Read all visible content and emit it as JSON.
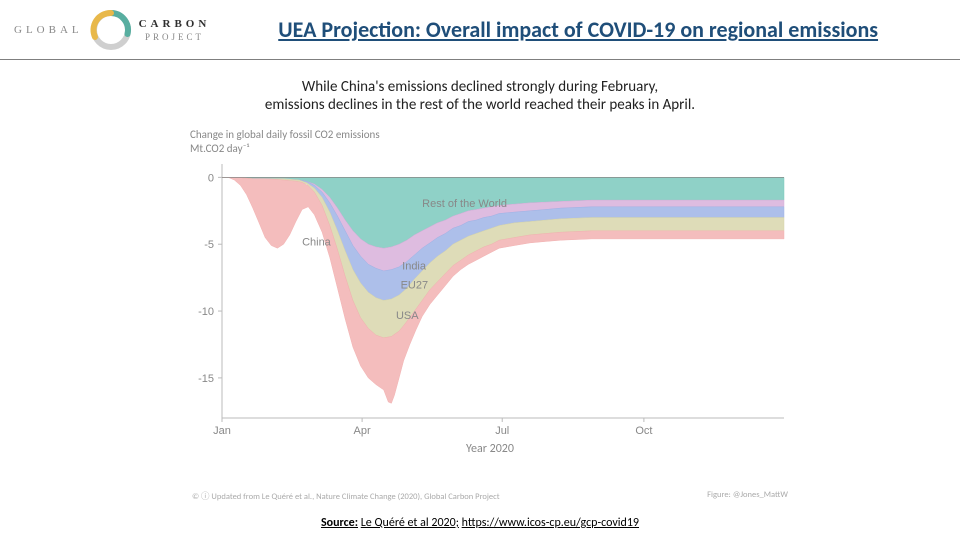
{
  "header": {
    "logo": {
      "word1": "GLOBAL",
      "word2": "CARBON",
      "word3": "PROJECT"
    },
    "title": "UEA Projection: Overall impact of COVID-19 on regional emissions"
  },
  "subtitle_line1": "While China's emissions declined strongly during February,",
  "subtitle_line2": "emissions declines in the rest of the world reached their peaks in April.",
  "chart": {
    "type": "stacked-area",
    "title_line1": "Change in global daily fossil CO2 emissions",
    "title_line2": "Mt.CO2 day⁻¹",
    "x_label": "Year 2020",
    "x_ticks": [
      "Jan",
      "Apr",
      "Jul",
      "Oct"
    ],
    "x_tick_positions": [
      0,
      91,
      182,
      274
    ],
    "x_domain": [
      0,
      365
    ],
    "y_ticks": [
      0,
      -5,
      -10,
      -15
    ],
    "y_domain": [
      -18,
      1
    ],
    "background_color": "#ffffff",
    "grid_color": "#e0e0e0",
    "axis_color": "#bbbbbb",
    "series": [
      {
        "name": "Rest of the World",
        "color": "#7bc9bd",
        "label_color": "#555",
        "label_xy": [
          130,
          -2.2
        ],
        "data": [
          [
            0,
            0
          ],
          [
            10,
            0
          ],
          [
            20,
            -0.1
          ],
          [
            30,
            -0.1
          ],
          [
            40,
            -0.1
          ],
          [
            50,
            -0.2
          ],
          [
            55,
            -0.3
          ],
          [
            60,
            -0.5
          ],
          [
            65,
            -0.9
          ],
          [
            70,
            -1.5
          ],
          [
            75,
            -2.3
          ],
          [
            80,
            -3.2
          ],
          [
            85,
            -4.0
          ],
          [
            90,
            -4.6
          ],
          [
            95,
            -5.0
          ],
          [
            100,
            -5.2
          ],
          [
            105,
            -5.3
          ],
          [
            110,
            -5.2
          ],
          [
            115,
            -5.0
          ],
          [
            120,
            -4.7
          ],
          [
            125,
            -4.3
          ],
          [
            130,
            -4.0
          ],
          [
            135,
            -3.7
          ],
          [
            140,
            -3.4
          ],
          [
            145,
            -3.2
          ],
          [
            150,
            -2.9
          ],
          [
            155,
            -2.7
          ],
          [
            160,
            -2.5
          ],
          [
            165,
            -2.4
          ],
          [
            170,
            -2.3
          ],
          [
            175,
            -2.2
          ],
          [
            180,
            -2.1
          ],
          [
            190,
            -2.0
          ],
          [
            200,
            -1.9
          ],
          [
            210,
            -1.85
          ],
          [
            220,
            -1.8
          ],
          [
            240,
            -1.7
          ],
          [
            260,
            -1.7
          ],
          [
            280,
            -1.7
          ],
          [
            300,
            -1.7
          ],
          [
            320,
            -1.7
          ],
          [
            340,
            -1.7
          ],
          [
            365,
            -1.7
          ]
        ]
      },
      {
        "name": "India",
        "color": "#d8b0da",
        "label_color": "#b084b3",
        "label_xy": [
          117,
          -6.9
        ],
        "data": [
          [
            0,
            0
          ],
          [
            10,
            0
          ],
          [
            20,
            -0.1
          ],
          [
            30,
            -0.1
          ],
          [
            40,
            -0.1
          ],
          [
            50,
            -0.2
          ],
          [
            55,
            -0.3
          ],
          [
            60,
            -0.6
          ],
          [
            65,
            -1.1
          ],
          [
            70,
            -1.9
          ],
          [
            75,
            -2.9
          ],
          [
            80,
            -4.0
          ],
          [
            85,
            -5.1
          ],
          [
            90,
            -5.9
          ],
          [
            95,
            -6.5
          ],
          [
            100,
            -6.8
          ],
          [
            105,
            -7.0
          ],
          [
            110,
            -6.9
          ],
          [
            115,
            -6.7
          ],
          [
            120,
            -6.3
          ],
          [
            125,
            -5.8
          ],
          [
            130,
            -5.3
          ],
          [
            135,
            -4.9
          ],
          [
            140,
            -4.5
          ],
          [
            145,
            -4.2
          ],
          [
            150,
            -3.8
          ],
          [
            155,
            -3.6
          ],
          [
            160,
            -3.3
          ],
          [
            165,
            -3.2
          ],
          [
            170,
            -3.0
          ],
          [
            175,
            -2.9
          ],
          [
            180,
            -2.7
          ],
          [
            190,
            -2.6
          ],
          [
            200,
            -2.5
          ],
          [
            210,
            -2.4
          ],
          [
            220,
            -2.3
          ],
          [
            240,
            -2.2
          ],
          [
            260,
            -2.2
          ],
          [
            280,
            -2.2
          ],
          [
            300,
            -2.2
          ],
          [
            320,
            -2.2
          ],
          [
            340,
            -2.2
          ],
          [
            365,
            -2.2
          ]
        ]
      },
      {
        "name": "EU27",
        "color": "#9fb4e6",
        "label_color": "#6f87c9",
        "label_xy": [
          116,
          -8.3
        ],
        "data": [
          [
            0,
            0
          ],
          [
            10,
            0
          ],
          [
            20,
            -0.1
          ],
          [
            30,
            -0.1
          ],
          [
            40,
            -0.1
          ],
          [
            50,
            -0.2
          ],
          [
            55,
            -0.4
          ],
          [
            60,
            -0.8
          ],
          [
            65,
            -1.5
          ],
          [
            70,
            -2.6
          ],
          [
            75,
            -4.0
          ],
          [
            80,
            -5.5
          ],
          [
            85,
            -6.9
          ],
          [
            90,
            -7.9
          ],
          [
            95,
            -8.6
          ],
          [
            100,
            -9.0
          ],
          [
            105,
            -9.2
          ],
          [
            110,
            -9.1
          ],
          [
            115,
            -8.8
          ],
          [
            120,
            -8.3
          ],
          [
            125,
            -7.6
          ],
          [
            130,
            -7.0
          ],
          [
            135,
            -6.4
          ],
          [
            140,
            -5.9
          ],
          [
            145,
            -5.5
          ],
          [
            150,
            -5.0
          ],
          [
            155,
            -4.7
          ],
          [
            160,
            -4.4
          ],
          [
            165,
            -4.2
          ],
          [
            170,
            -4.0
          ],
          [
            175,
            -3.8
          ],
          [
            180,
            -3.6
          ],
          [
            190,
            -3.4
          ],
          [
            200,
            -3.3
          ],
          [
            210,
            -3.2
          ],
          [
            220,
            -3.1
          ],
          [
            240,
            -3.0
          ],
          [
            260,
            -3.0
          ],
          [
            280,
            -3.0
          ],
          [
            300,
            -3.0
          ],
          [
            320,
            -3.0
          ],
          [
            340,
            -3.0
          ],
          [
            365,
            -3.0
          ]
        ]
      },
      {
        "name": "USA",
        "color": "#d8d6ab",
        "label_color": "#a09e6f",
        "label_xy": [
          113,
          -10.6
        ],
        "data": [
          [
            0,
            0
          ],
          [
            10,
            0
          ],
          [
            20,
            -0.1
          ],
          [
            30,
            -0.1
          ],
          [
            40,
            -0.2
          ],
          [
            50,
            -0.3
          ],
          [
            55,
            -0.5
          ],
          [
            60,
            -1.1
          ],
          [
            65,
            -2.1
          ],
          [
            70,
            -3.6
          ],
          [
            75,
            -5.4
          ],
          [
            80,
            -7.4
          ],
          [
            85,
            -9.2
          ],
          [
            90,
            -10.5
          ],
          [
            95,
            -11.3
          ],
          [
            100,
            -11.8
          ],
          [
            105,
            -12.0
          ],
          [
            110,
            -11.9
          ],
          [
            115,
            -11.5
          ],
          [
            120,
            -10.8
          ],
          [
            125,
            -10.0
          ],
          [
            130,
            -9.2
          ],
          [
            135,
            -8.4
          ],
          [
            140,
            -7.8
          ],
          [
            145,
            -7.2
          ],
          [
            150,
            -6.6
          ],
          [
            155,
            -6.2
          ],
          [
            160,
            -5.8
          ],
          [
            165,
            -5.5
          ],
          [
            170,
            -5.2
          ],
          [
            175,
            -5.0
          ],
          [
            180,
            -4.7
          ],
          [
            190,
            -4.5
          ],
          [
            200,
            -4.3
          ],
          [
            210,
            -4.2
          ],
          [
            220,
            -4.1
          ],
          [
            240,
            -4.0
          ],
          [
            260,
            -4.0
          ],
          [
            280,
            -4.0
          ],
          [
            300,
            -4.0
          ],
          [
            320,
            -4.0
          ],
          [
            340,
            -4.0
          ],
          [
            365,
            -4.0
          ]
        ]
      },
      {
        "name": "China",
        "color": "#f2b2b2",
        "label_color": "#d46a6a",
        "label_xy": [
          52,
          -5.1
        ],
        "data": [
          [
            0,
            0
          ],
          [
            4,
            0
          ],
          [
            8,
            -0.2
          ],
          [
            12,
            -0.6
          ],
          [
            16,
            -1.3
          ],
          [
            20,
            -2.3
          ],
          [
            24,
            -3.4
          ],
          [
            28,
            -4.5
          ],
          [
            32,
            -5.1
          ],
          [
            36,
            -5.3
          ],
          [
            40,
            -5.0
          ],
          [
            44,
            -4.3
          ],
          [
            48,
            -3.3
          ],
          [
            52,
            -2.4
          ],
          [
            56,
            -2.2
          ],
          [
            60,
            -2.8
          ],
          [
            65,
            -4.1
          ],
          [
            70,
            -6.0
          ],
          [
            75,
            -8.3
          ],
          [
            80,
            -10.6
          ],
          [
            85,
            -12.7
          ],
          [
            90,
            -14.1
          ],
          [
            95,
            -15.0
          ],
          [
            100,
            -15.5
          ],
          [
            105,
            -15.9
          ],
          [
            108,
            -16.8
          ],
          [
            110,
            -16.9
          ],
          [
            112,
            -16.3
          ],
          [
            115,
            -15.0
          ],
          [
            118,
            -13.7
          ],
          [
            122,
            -12.5
          ],
          [
            126,
            -11.4
          ],
          [
            130,
            -10.4
          ],
          [
            135,
            -9.5
          ],
          [
            140,
            -8.8
          ],
          [
            145,
            -8.1
          ],
          [
            150,
            -7.4
          ],
          [
            155,
            -6.9
          ],
          [
            160,
            -6.5
          ],
          [
            165,
            -6.2
          ],
          [
            170,
            -5.9
          ],
          [
            175,
            -5.6
          ],
          [
            180,
            -5.3
          ],
          [
            190,
            -5.1
          ],
          [
            200,
            -4.9
          ],
          [
            210,
            -4.8
          ],
          [
            220,
            -4.7
          ],
          [
            240,
            -4.6
          ],
          [
            260,
            -4.6
          ],
          [
            280,
            -4.6
          ],
          [
            300,
            -4.6
          ],
          [
            320,
            -4.6
          ],
          [
            340,
            -4.6
          ],
          [
            365,
            -4.6
          ]
        ]
      }
    ]
  },
  "footer": {
    "left": "© ⓘ Updated from Le Quéré et al., Nature Climate Change (2020), Global Carbon Project",
    "right": "Figure: @Jones_MattW"
  },
  "source": {
    "label": "Source:",
    "citation": "Le Quéré et al 2020;",
    "url": "https://www.icos-cp.eu/gcp-covid19"
  }
}
